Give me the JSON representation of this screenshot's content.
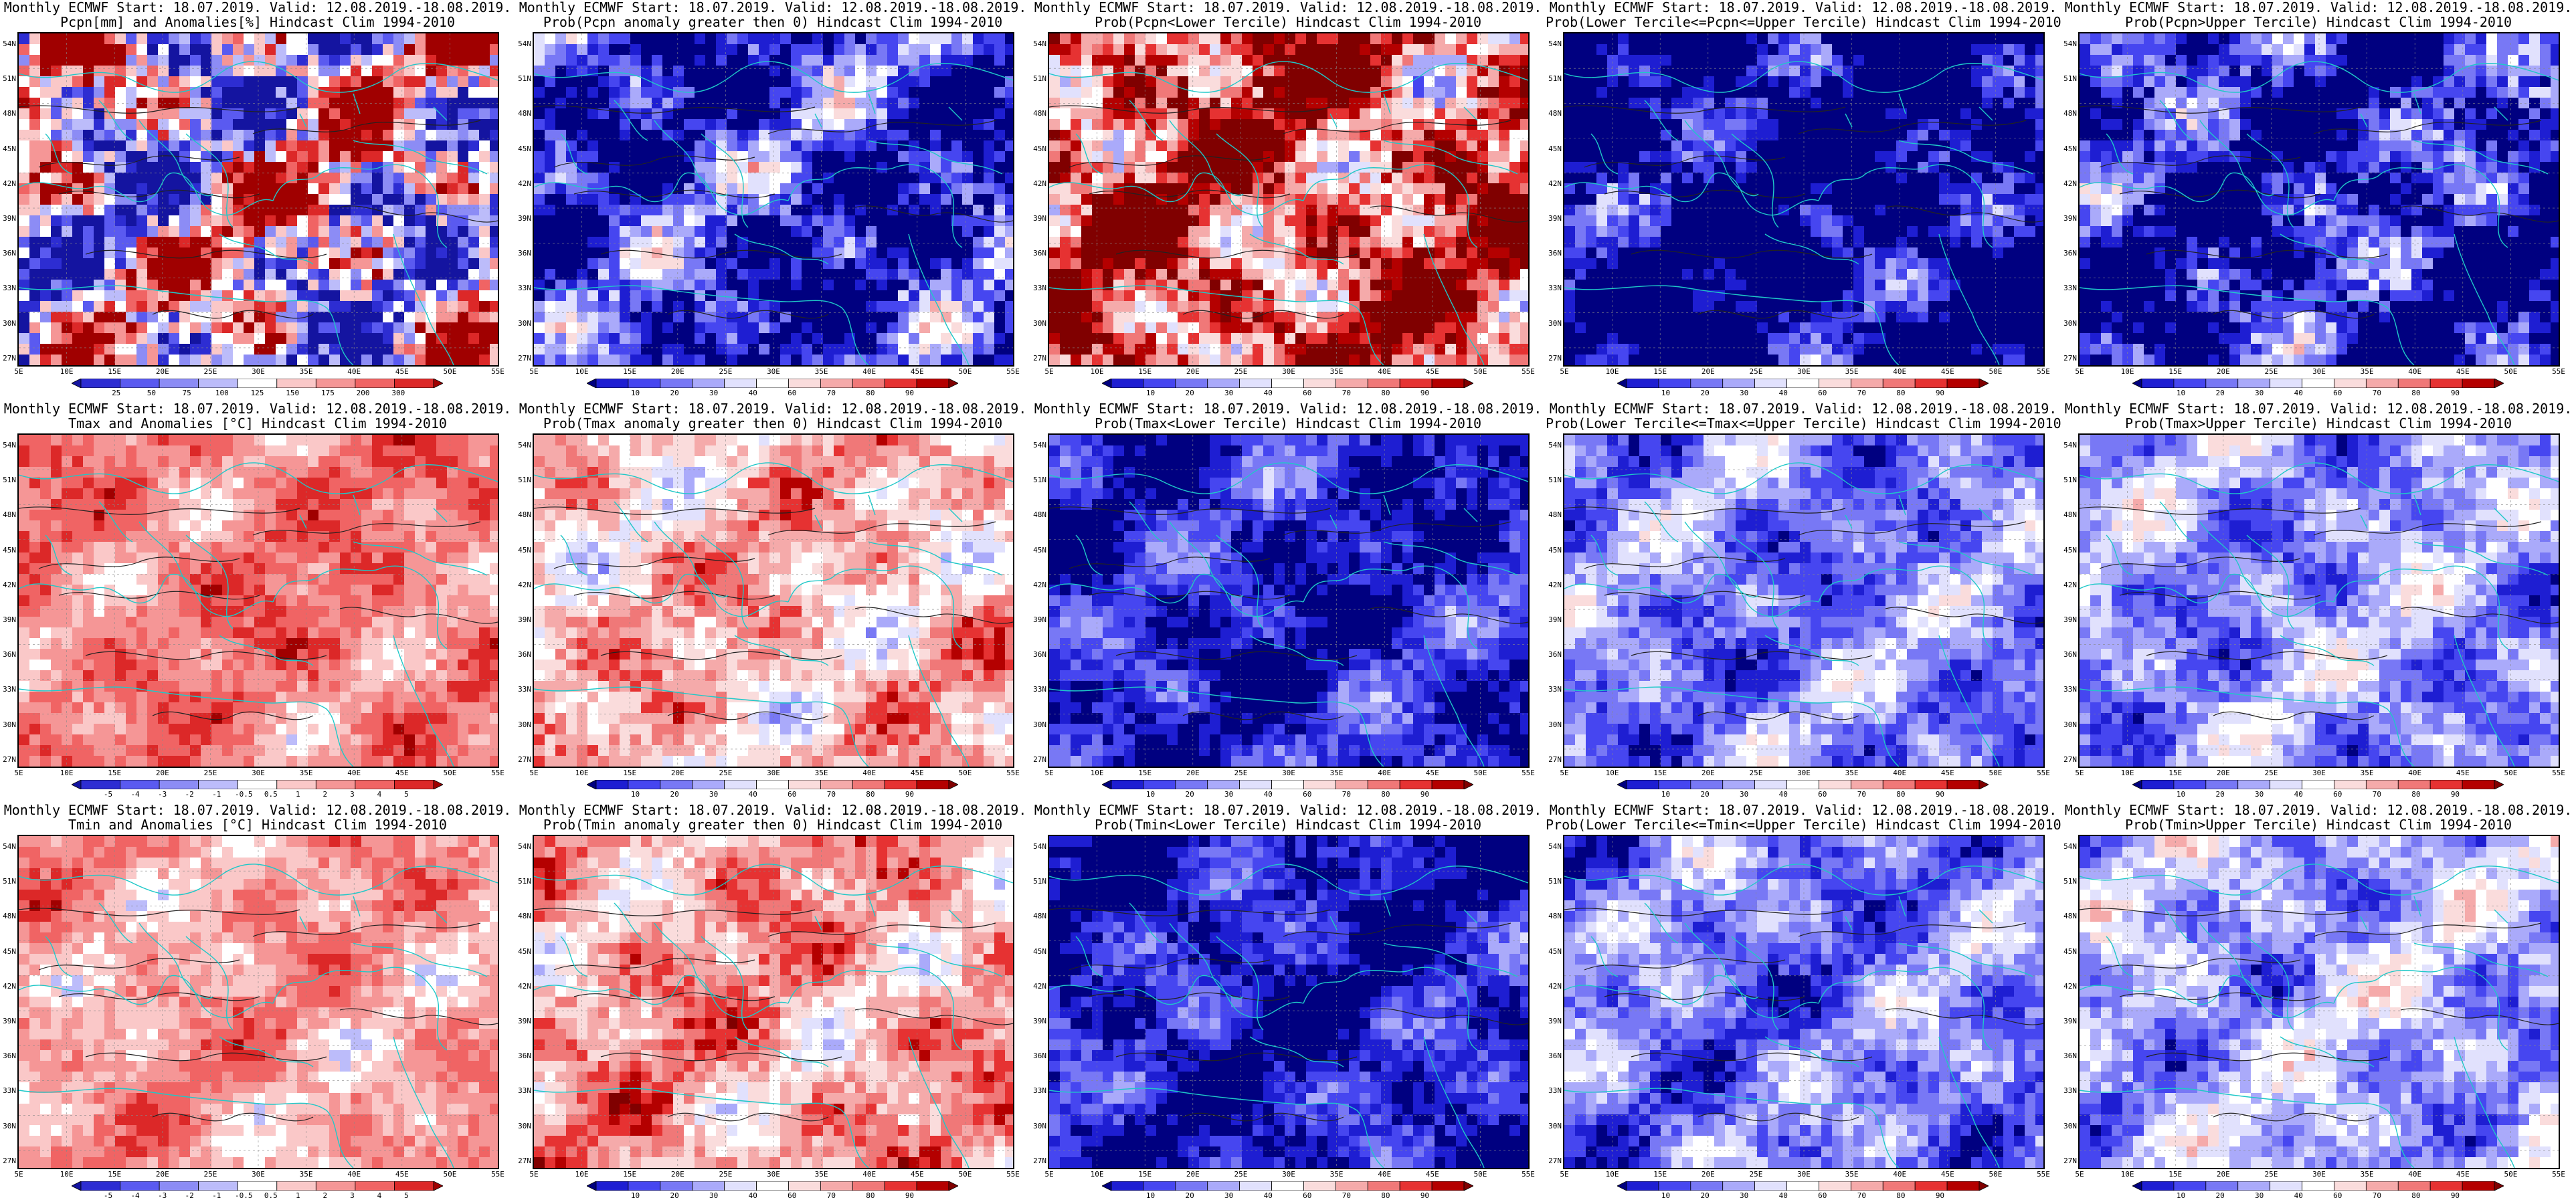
{
  "palettes": {
    "anom": [
      "#1414a0",
      "#2d2dd2",
      "#5a5af0",
      "#8c8cf5",
      "#bcbcfa",
      "#ffffff",
      "#fac8c8",
      "#f59696",
      "#f06464",
      "#dc2828",
      "#a00000"
    ],
    "prob": [
      "#000080",
      "#1e1ed2",
      "#4646f0",
      "#7878f5",
      "#aaaafa",
      "#e1e1fd",
      "#ffffff",
      "#fadcdc",
      "#f5aaaa",
      "#f07878",
      "#e63232",
      "#b40000",
      "#800000"
    ]
  },
  "lat_labels": [
    "54N",
    "51N",
    "48N",
    "45N",
    "42N",
    "39N",
    "36N",
    "33N",
    "30N",
    "27N"
  ],
  "lon_labels": [
    "5E",
    "10E",
    "15E",
    "20E",
    "25E",
    "30E",
    "35E",
    "40E",
    "45E",
    "50E",
    "55E"
  ],
  "panels": [
    {
      "title1": "Monthly ECMWF Start: 18.07.2019. Valid: 12.08.2019.-18.08.2019.",
      "title2": "Pcpn[mm] and Anomalies[%] Hindcast Clim 1994-2010",
      "palette": "anom",
      "bias": 0,
      "spread": 1.0,
      "cbar_labels": [
        "25",
        "50",
        "75",
        "100",
        "125",
        "150",
        "175",
        "200",
        "300"
      ]
    },
    {
      "title1": "Monthly ECMWF Start: 18.07.2019. Valid: 12.08.2019.-18.08.2019.",
      "title2": "Prob(Pcpn anomaly greater then 0) Hindcast Clim 1994-2010",
      "palette": "prob",
      "bias": -0.35,
      "spread": 0.5,
      "cbar_labels": [
        "10",
        "20",
        "30",
        "40",
        "60",
        "70",
        "80",
        "90"
      ]
    },
    {
      "title1": "Monthly ECMWF Start: 18.07.2019. Valid: 12.08.2019.-18.08.2019.",
      "title2": "Prob(Pcpn<Lower Tercile) Hindcast Clim 1994-2010",
      "palette": "prob",
      "bias": 0.3,
      "spread": 0.6,
      "cbar_labels": [
        "10",
        "20",
        "30",
        "40",
        "60",
        "70",
        "80",
        "90"
      ]
    },
    {
      "title1": "Monthly ECMWF Start: 18.07.2019. Valid: 12.08.2019.-18.08.2019.",
      "title2": "Prob(Lower Tercile<=Pcpn<=Upper Tercile) Hindcast Clim 1994-2010",
      "palette": "prob",
      "bias": -0.5,
      "spread": 0.45,
      "cbar_labels": [
        "10",
        "20",
        "30",
        "40",
        "60",
        "70",
        "80",
        "90"
      ]
    },
    {
      "title1": "Monthly ECMWF Start: 18.07.2019. Valid: 12.08.2019.-18.08.2019.",
      "title2": "Prob(Pcpn>Upper Tercile) Hindcast Clim 1994-2010",
      "palette": "prob",
      "bias": -0.4,
      "spread": 0.5,
      "cbar_labels": [
        "10",
        "20",
        "30",
        "40",
        "60",
        "70",
        "80",
        "90"
      ]
    },
    {
      "title1": "Monthly ECMWF Start: 18.07.2019. Valid: 12.08.2019.-18.08.2019.",
      "title2": "Tmax and Anomalies [°C] Hindcast Clim 1994-2010",
      "palette": "anom",
      "bias": 0.22,
      "spread": 0.25,
      "cbar_labels": [
        "-5",
        "-4",
        "-3",
        "-2",
        "-1",
        "-0.5",
        "0.5",
        "1",
        "2",
        "3",
        "4",
        "5"
      ]
    },
    {
      "title1": "Monthly ECMWF Start: 18.07.2019. Valid: 12.08.2019.-18.08.2019.",
      "title2": "Prob(Tmax anomaly greater then 0) Hindcast Clim 1994-2010",
      "palette": "prob",
      "bias": 0.12,
      "spread": 0.3,
      "cbar_labels": [
        "10",
        "20",
        "30",
        "40",
        "60",
        "70",
        "80",
        "90"
      ]
    },
    {
      "title1": "Monthly ECMWF Start: 18.07.2019. Valid: 12.08.2019.-18.08.2019.",
      "title2": "Prob(Tmax<Lower Tercile) Hindcast Clim 1994-2010",
      "palette": "prob",
      "bias": -0.38,
      "spread": 0.3,
      "cbar_labels": [
        "10",
        "20",
        "30",
        "40",
        "60",
        "70",
        "80",
        "90"
      ]
    },
    {
      "title1": "Monthly ECMWF Start: 18.07.2019. Valid: 12.08.2019.-18.08.2019.",
      "title2": "Prob(Lower Tercile<=Tmax<=Upper Tercile) Hindcast Clim 1994-2010",
      "palette": "prob",
      "bias": -0.22,
      "spread": 0.3,
      "cbar_labels": [
        "10",
        "20",
        "30",
        "40",
        "60",
        "70",
        "80",
        "90"
      ]
    },
    {
      "title1": "Monthly ECMWF Start: 18.07.2019. Valid: 12.08.2019.-18.08.2019.",
      "title2": "Prob(Tmax>Upper Tercile) Hindcast Clim 1994-2010",
      "palette": "prob",
      "bias": -0.18,
      "spread": 0.3,
      "cbar_labels": [
        "10",
        "20",
        "30",
        "40",
        "60",
        "70",
        "80",
        "90"
      ]
    },
    {
      "title1": "Monthly ECMWF Start: 18.07.2019. Valid: 12.08.2019.-18.08.2019.",
      "title2": "Tmin and Anomalies [°C] Hindcast Clim 1994-2010",
      "palette": "anom",
      "bias": 0.16,
      "spread": 0.25,
      "cbar_labels": [
        "-5",
        "-4",
        "-3",
        "-2",
        "-1",
        "-0.5",
        "0.5",
        "1",
        "2",
        "3",
        "4",
        "5"
      ]
    },
    {
      "title1": "Monthly ECMWF Start: 18.07.2019. Valid: 12.08.2019.-18.08.2019.",
      "title2": "Prob(Tmin anomaly greater then 0) Hindcast Clim 1994-2010",
      "palette": "prob",
      "bias": 0.16,
      "spread": 0.3,
      "cbar_labels": [
        "10",
        "20",
        "30",
        "40",
        "60",
        "70",
        "80",
        "90"
      ]
    },
    {
      "title1": "Monthly ECMWF Start: 18.07.2019. Valid: 12.08.2019.-18.08.2019.",
      "title2": "Prob(Tmin<Lower Tercile) Hindcast Clim 1994-2010",
      "palette": "prob",
      "bias": -0.4,
      "spread": 0.3,
      "cbar_labels": [
        "10",
        "20",
        "30",
        "40",
        "60",
        "70",
        "80",
        "90"
      ]
    },
    {
      "title1": "Monthly ECMWF Start: 18.07.2019. Valid: 12.08.2019.-18.08.2019.",
      "title2": "Prob(Lower Tercile<=Tmin<=Upper Tercile) Hindcast Clim 1994-2010",
      "palette": "prob",
      "bias": -0.22,
      "spread": 0.3,
      "cbar_labels": [
        "10",
        "20",
        "30",
        "40",
        "60",
        "70",
        "80",
        "90"
      ]
    },
    {
      "title1": "Monthly ECMWF Start: 18.07.2019. Valid: 12.08.2019.-18.08.2019.",
      "title2": "Prob(Tmin>Upper Tercile) Hindcast Clim 1994-2010",
      "palette": "prob",
      "bias": -0.15,
      "spread": 0.3,
      "cbar_labels": [
        "10",
        "20",
        "30",
        "40",
        "60",
        "70",
        "80",
        "90"
      ]
    }
  ]
}
